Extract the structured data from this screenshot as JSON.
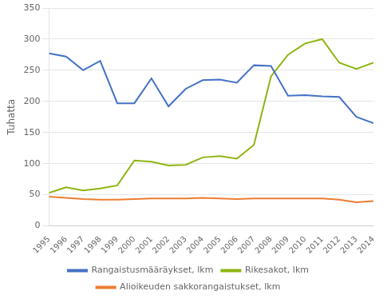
{
  "chart_data": {
    "type": "line",
    "ylabel": "Tuhatta",
    "x": [
      1995,
      1996,
      1997,
      1998,
      1999,
      2000,
      2001,
      2002,
      2003,
      2004,
      2005,
      2006,
      2007,
      2008,
      2009,
      2010,
      2011,
      2012,
      2013,
      2014
    ],
    "series": [
      {
        "name": "Rangaistusmääräykset, lkm",
        "color": "#4472C4",
        "values": [
          277,
          272,
          250,
          265,
          197,
          197,
          237,
          192,
          220,
          234,
          235,
          230,
          258,
          257,
          209,
          210,
          208,
          207,
          175,
          165
        ]
      },
      {
        "name": "Rikesakot, lkm",
        "color": "#8DB510",
        "values": [
          53,
          62,
          57,
          60,
          65,
          105,
          103,
          97,
          98,
          110,
          112,
          108,
          130,
          240,
          275,
          293,
          300,
          262,
          252,
          262
        ]
      },
      {
        "name": "Alioikeuden sakkorangaistukset, lkm",
        "color": "#ED7D31",
        "values": [
          47,
          45,
          43,
          42,
          42,
          43,
          44,
          44,
          44,
          45,
          44,
          43,
          44,
          44,
          44,
          44,
          44,
          42,
          38,
          40
        ]
      }
    ],
    "xlim": [
      1995,
      2014
    ],
    "xticks": [
      1995,
      1996,
      1997,
      1998,
      1999,
      2000,
      2001,
      2002,
      2003,
      2004,
      2005,
      2006,
      2007,
      2008,
      2009,
      2010,
      2011,
      2012,
      2013,
      2014
    ],
    "ylim": [
      0,
      350
    ],
    "yticks": [
      0,
      50,
      100,
      150,
      200,
      250,
      300,
      350
    ],
    "grid": "y",
    "legend": "bottom"
  }
}
